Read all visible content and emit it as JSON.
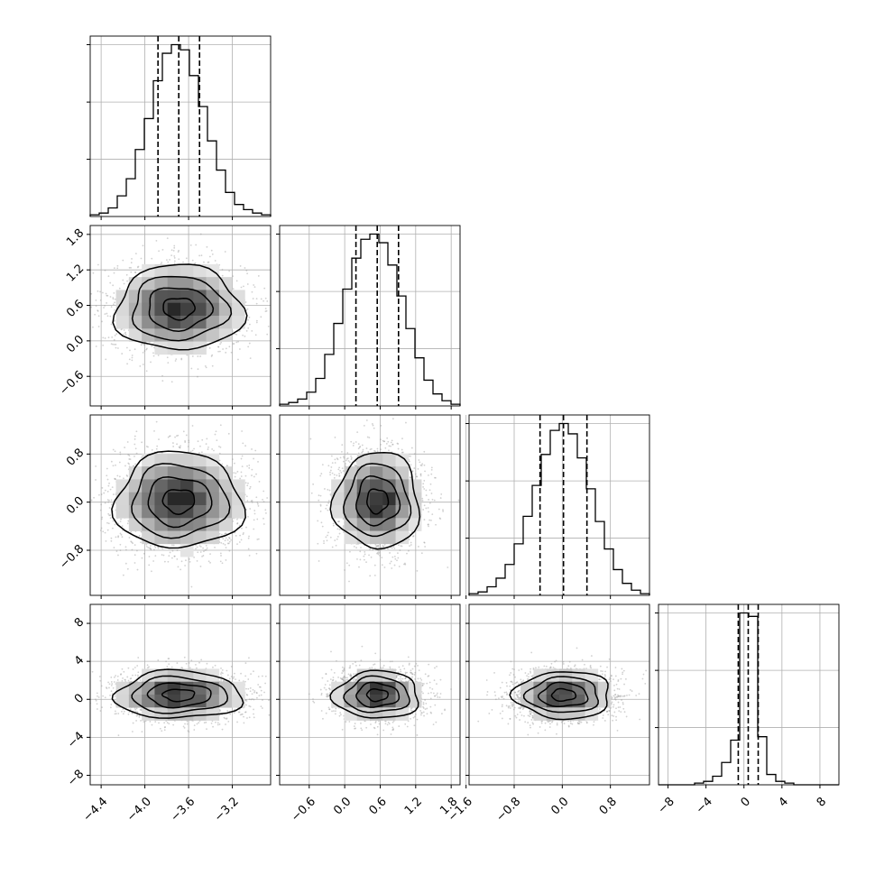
{
  "figure": {
    "type": "corner_plot",
    "grid": true,
    "background": "#ffffff",
    "ink": "#000000",
    "point_color": "#9a9a9a"
  },
  "chart_data": {
    "type": "corner",
    "parameters": [
      {
        "mean": -3.69,
        "sigma": 0.29,
        "range": [
          -4.5,
          -2.85
        ],
        "quantiles": [
          -3.88,
          -3.69,
          -3.5
        ],
        "ticks": [
          -4.4,
          -4.0,
          -3.6,
          -3.2
        ],
        "tick_labels": [
          "−4.4",
          "−4.0",
          "−3.6",
          "−3.2"
        ],
        "hist_counts": [
          1,
          2,
          5,
          12,
          22,
          39,
          57,
          79,
          95,
          100,
          97,
          82,
          64,
          44,
          27,
          14,
          7,
          4,
          2,
          1
        ]
      },
      {
        "mean": 0.55,
        "sigma": 0.36,
        "range": [
          -1.1,
          1.95
        ],
        "quantiles": [
          0.19,
          0.55,
          0.91
        ],
        "ticks": [
          -0.6,
          0.0,
          0.6,
          1.2,
          1.8
        ],
        "tick_labels": [
          "−0.6",
          "0.0",
          "0.6",
          "1.2",
          "1.8"
        ],
        "hist_counts": [
          1,
          2,
          4,
          8,
          16,
          30,
          48,
          68,
          86,
          97,
          100,
          95,
          82,
          64,
          45,
          28,
          15,
          7,
          3,
          1
        ]
      },
      {
        "mean": 0.02,
        "sigma": 0.4,
        "range": [
          -1.55,
          1.45
        ],
        "quantiles": [
          -0.37,
          0.02,
          0.41
        ],
        "ticks": [
          -1.6,
          -0.8,
          0.0,
          0.8
        ],
        "tick_labels": [
          "−1.6",
          "−0.8",
          "0.0",
          "0.8"
        ],
        "hist_counts": [
          1,
          2,
          5,
          10,
          18,
          30,
          46,
          64,
          82,
          96,
          100,
          94,
          80,
          62,
          43,
          27,
          15,
          7,
          3,
          1
        ]
      },
      {
        "mean": 0.45,
        "sigma": 1.25,
        "range": [
          -9.0,
          10.0
        ],
        "quantiles": [
          -0.6,
          0.45,
          1.5
        ],
        "ticks": [
          -8,
          -4,
          0,
          4,
          8
        ],
        "tick_labels": [
          "−8",
          "−4",
          "0",
          "4",
          "8"
        ],
        "hist_counts": [
          0,
          0,
          0,
          0,
          1,
          2,
          5,
          13,
          26,
          100,
          98,
          28,
          6,
          2,
          1,
          0,
          0,
          0,
          0,
          0
        ]
      }
    ]
  }
}
